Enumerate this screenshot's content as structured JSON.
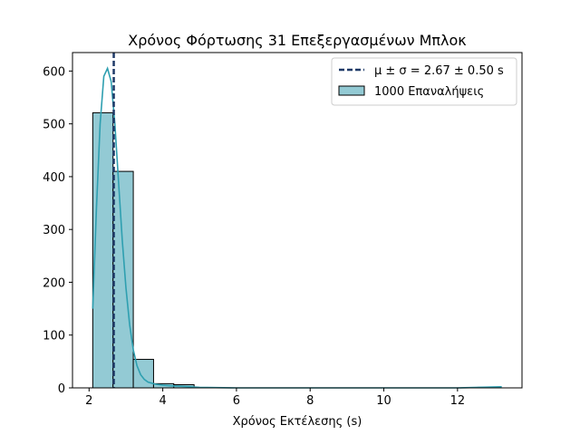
{
  "chart_data": {
    "type": "bar",
    "title": "Χρόνος Φόρτωσης 31 Επεξεργασμένων Μπλοκ",
    "xlabel": "Χρόνος Εκτέλεσης (s)",
    "ylabel": "",
    "xlim": [
      1.55,
      13.75
    ],
    "ylim": [
      0,
      635
    ],
    "x_ticks": [
      2,
      4,
      6,
      8,
      10,
      12
    ],
    "y_ticks": [
      0,
      100,
      200,
      300,
      400,
      500,
      600
    ],
    "grid": false,
    "legend_position": "top-right",
    "bins": [
      {
        "start": 2.1,
        "end": 2.65,
        "count": 521
      },
      {
        "start": 2.65,
        "end": 3.2,
        "count": 410
      },
      {
        "start": 3.2,
        "end": 3.75,
        "count": 54
      },
      {
        "start": 3.75,
        "end": 4.3,
        "count": 8
      },
      {
        "start": 4.3,
        "end": 4.85,
        "count": 6
      },
      {
        "start": 4.85,
        "end": 5.4,
        "count": 0
      },
      {
        "start": 5.4,
        "end": 5.95,
        "count": 0
      },
      {
        "start": 5.95,
        "end": 6.5,
        "count": 0
      },
      {
        "start": 6.5,
        "end": 7.05,
        "count": 0
      },
      {
        "start": 7.05,
        "end": 7.6,
        "count": 0
      },
      {
        "start": 7.6,
        "end": 8.15,
        "count": 0
      },
      {
        "start": 8.15,
        "end": 8.7,
        "count": 0
      },
      {
        "start": 8.7,
        "end": 9.25,
        "count": 0
      },
      {
        "start": 9.25,
        "end": 9.8,
        "count": 0
      },
      {
        "start": 9.8,
        "end": 10.35,
        "count": 0
      },
      {
        "start": 10.35,
        "end": 10.9,
        "count": 0
      },
      {
        "start": 10.9,
        "end": 11.45,
        "count": 0
      },
      {
        "start": 11.45,
        "end": 12.0,
        "count": 0
      },
      {
        "start": 12.0,
        "end": 12.55,
        "count": 0
      },
      {
        "start": 12.55,
        "end": 13.1,
        "count": 1
      }
    ],
    "kde": {
      "x": [
        2.1,
        2.2,
        2.3,
        2.4,
        2.5,
        2.6,
        2.7,
        2.8,
        2.9,
        3.0,
        3.1,
        3.2,
        3.3,
        3.4,
        3.5,
        3.6,
        3.8,
        4.0,
        4.2,
        4.5,
        5.0,
        6.0,
        8.0,
        10.0,
        12.0,
        13.2
      ],
      "y": [
        150,
        340,
        500,
        590,
        605,
        580,
        500,
        390,
        280,
        190,
        120,
        72,
        42,
        25,
        16,
        11,
        7,
        5,
        4,
        3,
        1,
        0,
        0,
        0,
        0,
        2
      ]
    },
    "mean": 2.67,
    "std": 0.5,
    "series": [
      {
        "name": "μ ± σ = 2.67 ± 0.50 s",
        "type": "vline",
        "color": "#1f3a68"
      },
      {
        "name": "1000 Επαναλήψεις",
        "type": "histogram",
        "color": "#93cad4"
      }
    ],
    "colors": {
      "bar_fill": "#93cad4",
      "bar_edge": "#000000",
      "kde_line": "#2e9fb0",
      "mean_line": "#1f3a68"
    }
  }
}
